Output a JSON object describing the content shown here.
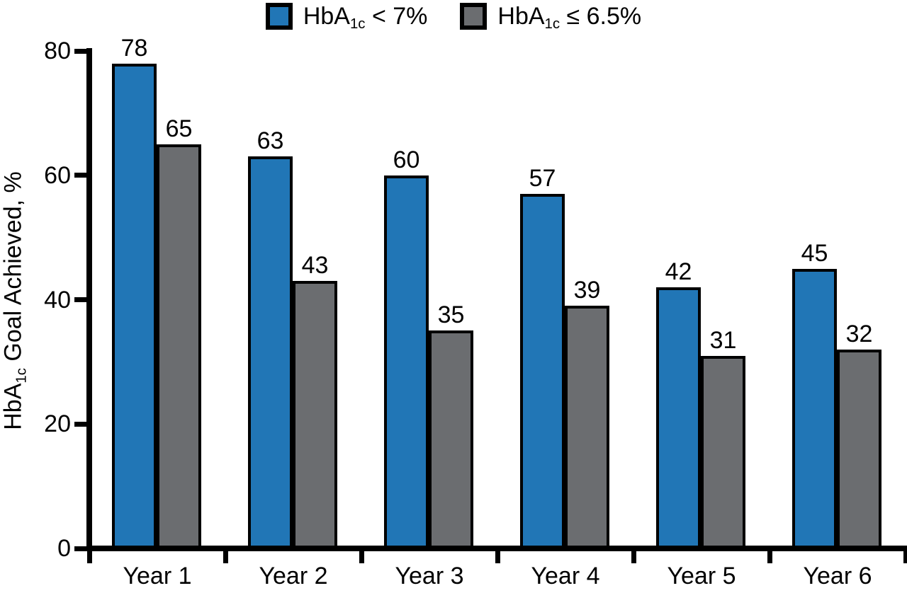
{
  "legend": {
    "items": [
      {
        "swatch_color": "#2176B6",
        "text_prefix": "HbA",
        "text_sub": "1c",
        "text_suffix": " < 7%"
      },
      {
        "swatch_color": "#6B6D70",
        "text_prefix": "HbA",
        "text_sub": "1c",
        "text_suffix": " ≤ 6.5%"
      }
    ]
  },
  "y_axis": {
    "title_prefix": "HbA",
    "title_sub": "1c",
    "title_suffix": " Goal Achieved, %",
    "ticks": [
      0,
      20,
      40,
      60,
      80
    ],
    "max": 80
  },
  "chart_data": {
    "type": "bar",
    "categories": [
      "Year 1",
      "Year 2",
      "Year 3",
      "Year 4",
      "Year 5",
      "Year 6"
    ],
    "series": [
      {
        "name": "HbA1c < 7%",
        "color": "#2176B6",
        "values": [
          78,
          63,
          60,
          57,
          42,
          45
        ]
      },
      {
        "name": "HbA1c ≤ 6.5%",
        "color": "#6B6D70",
        "values": [
          65,
          43,
          35,
          39,
          31,
          32
        ]
      }
    ],
    "title": "",
    "xlabel": "",
    "ylabel": "HbA1c Goal Achieved, %",
    "ylim": [
      0,
      80
    ],
    "grid": false,
    "legend_position": "top",
    "bar_labels": true,
    "bar_outline_color": "#000000",
    "background_color": "#FFFFFF"
  }
}
